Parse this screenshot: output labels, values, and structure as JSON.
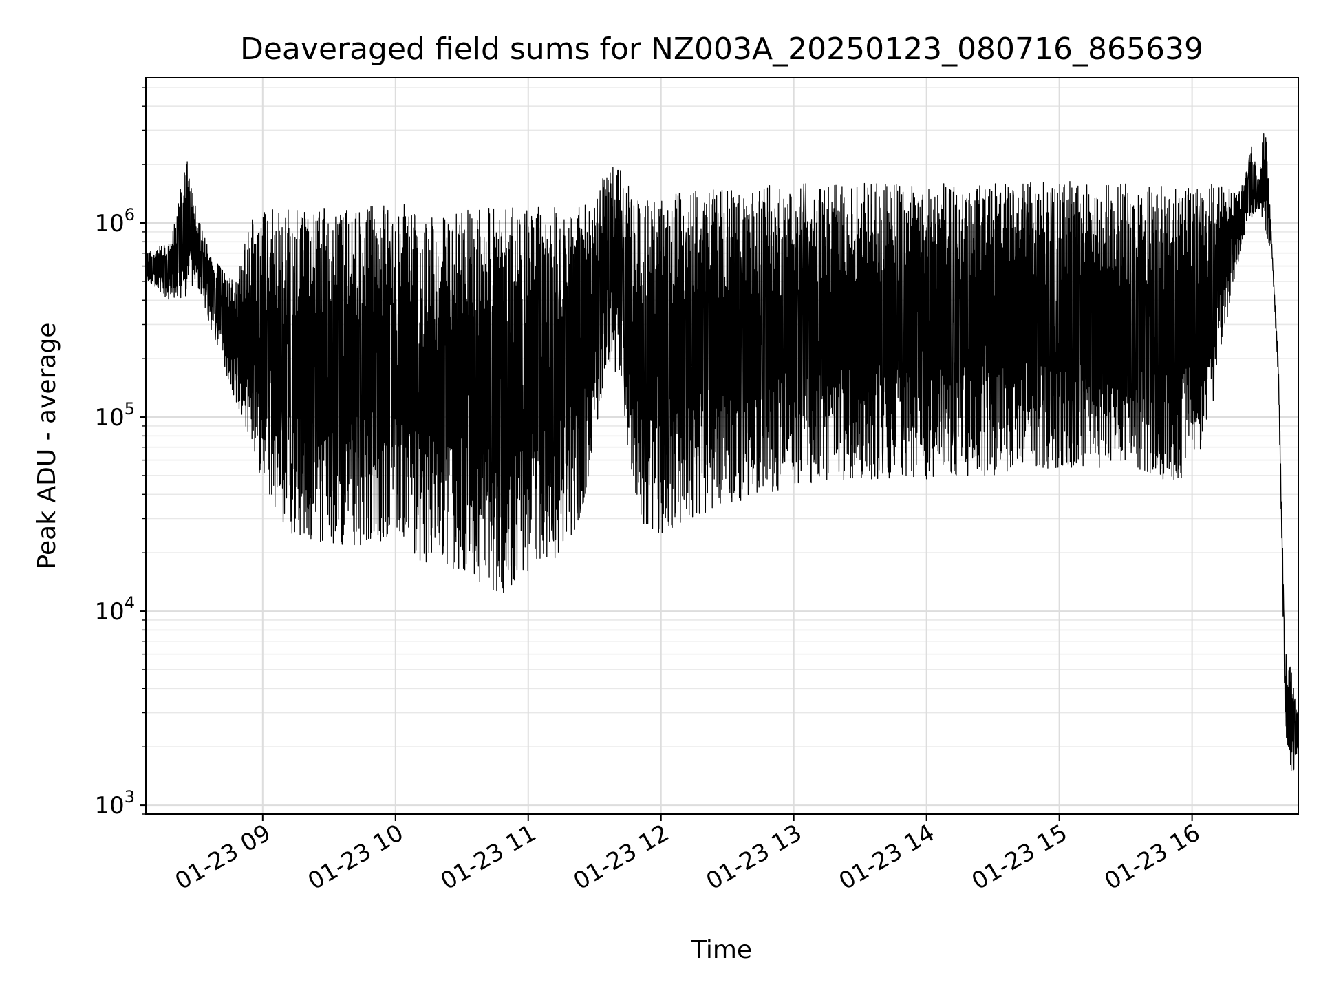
{
  "chart_data": {
    "type": "line",
    "title": "Deaveraged field sums for NZ003A_20250123_080716_865639",
    "xlabel": "Time",
    "ylabel": "Peak ADU - average",
    "yscale": "log",
    "ylim": [
      900,
      5600000
    ],
    "xlim_hours": [
      8.12,
      16.8
    ],
    "grid": true,
    "legend": "none",
    "line_color": "#000000",
    "x_tick_labels": [
      "01-23 09",
      "01-23 10",
      "01-23 11",
      "01-23 12",
      "01-23 13",
      "01-23 14",
      "01-23 15",
      "01-23 16"
    ],
    "x_tick_hours": [
      9,
      10,
      11,
      12,
      13,
      14,
      15,
      16
    ],
    "y_ticks": [
      {
        "value": 1000,
        "base": "10",
        "exp": "3"
      },
      {
        "value": 10000,
        "base": "10",
        "exp": "4"
      },
      {
        "value": 100000,
        "base": "10",
        "exp": "5"
      },
      {
        "value": 1000000,
        "base": "10",
        "exp": "6"
      }
    ],
    "series": [
      {
        "upper_envelope": [
          [
            8.12,
            700000
          ],
          [
            8.2,
            750000
          ],
          [
            8.3,
            800000
          ],
          [
            8.35,
            1100000
          ],
          [
            8.42,
            2300000
          ],
          [
            8.5,
            1200000
          ],
          [
            8.6,
            700000
          ],
          [
            8.7,
            600000
          ],
          [
            8.8,
            500000
          ],
          [
            8.9,
            1000000
          ],
          [
            9.0,
            1200000
          ],
          [
            9.3,
            1200000
          ],
          [
            9.5,
            1200000
          ],
          [
            9.7,
            1200000
          ],
          [
            10.0,
            1300000
          ],
          [
            10.3,
            1150000
          ],
          [
            10.6,
            1200000
          ],
          [
            10.8,
            1200000
          ],
          [
            11.0,
            1200000
          ],
          [
            11.3,
            1250000
          ],
          [
            11.5,
            1300000
          ],
          [
            11.6,
            2000000
          ],
          [
            11.7,
            1900000
          ],
          [
            11.8,
            1400000
          ],
          [
            12.0,
            1400000
          ],
          [
            12.3,
            1500000
          ],
          [
            12.5,
            1500000
          ],
          [
            13.0,
            1600000
          ],
          [
            13.5,
            1600000
          ],
          [
            14.0,
            1600000
          ],
          [
            14.5,
            1600000
          ],
          [
            15.0,
            1650000
          ],
          [
            15.5,
            1600000
          ],
          [
            16.0,
            1600000
          ],
          [
            16.2,
            1650000
          ],
          [
            16.35,
            1400000
          ],
          [
            16.45,
            2500000
          ],
          [
            16.5,
            1700000
          ],
          [
            16.55,
            3700000
          ],
          [
            16.6,
            800000
          ],
          [
            16.65,
            200000
          ],
          [
            16.7,
            6500
          ],
          [
            16.75,
            5000
          ],
          [
            16.8,
            3000
          ]
        ],
        "lower_envelope": [
          [
            8.12,
            500000
          ],
          [
            8.2,
            450000
          ],
          [
            8.3,
            400000
          ],
          [
            8.4,
            400000
          ],
          [
            8.5,
            500000
          ],
          [
            8.6,
            300000
          ],
          [
            8.7,
            180000
          ],
          [
            8.8,
            120000
          ],
          [
            8.9,
            80000
          ],
          [
            9.0,
            45000
          ],
          [
            9.2,
            25000
          ],
          [
            9.5,
            22000
          ],
          [
            9.8,
            22000
          ],
          [
            10.0,
            22000
          ],
          [
            10.2,
            18000
          ],
          [
            10.5,
            16000
          ],
          [
            10.8,
            12000
          ],
          [
            11.0,
            16000
          ],
          [
            11.2,
            18000
          ],
          [
            11.4,
            30000
          ],
          [
            11.6,
            200000
          ],
          [
            11.7,
            150000
          ],
          [
            11.8,
            30000
          ],
          [
            12.0,
            25000
          ],
          [
            12.2,
            30000
          ],
          [
            12.5,
            35000
          ],
          [
            12.8,
            40000
          ],
          [
            13.0,
            45000
          ],
          [
            13.5,
            48000
          ],
          [
            14.0,
            48000
          ],
          [
            14.5,
            50000
          ],
          [
            15.0,
            55000
          ],
          [
            15.5,
            55000
          ],
          [
            15.9,
            45000
          ],
          [
            16.1,
            70000
          ],
          [
            16.3,
            450000
          ],
          [
            16.4,
            900000
          ],
          [
            16.5,
            1200000
          ],
          [
            16.6,
            700000
          ],
          [
            16.65,
            150000
          ],
          [
            16.7,
            2500
          ],
          [
            16.75,
            1400
          ],
          [
            16.8,
            1800
          ]
        ]
      }
    ]
  }
}
